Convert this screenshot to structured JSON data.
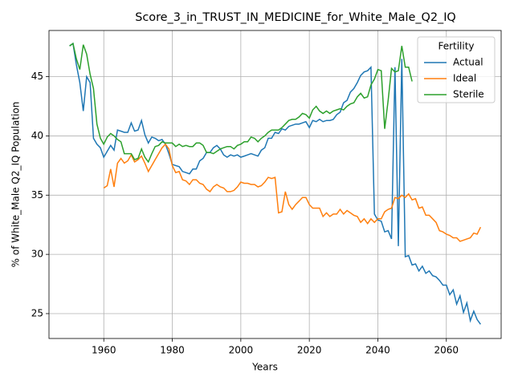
{
  "chart_data": {
    "type": "line",
    "title": "Score_3_in_TRUST_IN_MEDICINE_for_White_Male_Q2_IQ",
    "x_label": "Years",
    "y_label": "% of White_Male Q2_IQ Population",
    "legend_title": "Fertility",
    "legend_position": "upper right",
    "grid": true,
    "xlim": [
      1944,
      2076
    ],
    "ylim": [
      22.9,
      48.9
    ],
    "xticks": [
      1960,
      1980,
      2000,
      2020,
      2040,
      2060
    ],
    "yticks": [
      25,
      30,
      35,
      40,
      45
    ],
    "x": [
      1950,
      1951,
      1952,
      1953,
      1954,
      1955,
      1956,
      1957,
      1958,
      1959,
      1960,
      1961,
      1962,
      1963,
      1964,
      1965,
      1966,
      1967,
      1968,
      1969,
      1970,
      1971,
      1972,
      1973,
      1974,
      1975,
      1976,
      1977,
      1978,
      1979,
      1980,
      1981,
      1982,
      1983,
      1984,
      1985,
      1986,
      1987,
      1988,
      1989,
      1990,
      1991,
      1992,
      1993,
      1994,
      1995,
      1996,
      1997,
      1998,
      1999,
      2000,
      2001,
      2002,
      2003,
      2004,
      2005,
      2006,
      2007,
      2008,
      2009,
      2010,
      2011,
      2012,
      2013,
      2014,
      2015,
      2016,
      2017,
      2018,
      2019,
      2020,
      2021,
      2022,
      2023,
      2024,
      2025,
      2026,
      2027,
      2028,
      2029,
      2030,
      2031,
      2032,
      2033,
      2034,
      2035,
      2036,
      2037,
      2038,
      2039,
      2040,
      2041,
      2042,
      2043,
      2044,
      2045,
      2046,
      2047,
      2048,
      2049,
      2050,
      2051,
      2052,
      2053,
      2054,
      2055,
      2056,
      2057,
      2058,
      2059,
      2060,
      2061,
      2062,
      2063,
      2064,
      2065,
      2066,
      2067,
      2068,
      2069,
      2070
    ],
    "series": [
      {
        "name": "Actual",
        "color": "#1f77b4",
        "values": [
          47.6,
          47.8,
          46.0,
          44.5,
          42.1,
          45.0,
          44.5,
          39.8,
          39.3,
          39.0,
          38.2,
          38.7,
          39.2,
          38.8,
          40.5,
          40.4,
          40.3,
          40.3,
          41.1,
          40.4,
          40.5,
          41.3,
          40.1,
          39.4,
          39.9,
          39.8,
          39.6,
          39.7,
          39.3,
          38.5,
          37.6,
          37.5,
          37.4,
          37.0,
          36.9,
          36.8,
          37.2,
          37.2,
          37.9,
          38.1,
          38.6,
          38.6,
          39.0,
          39.2,
          38.9,
          38.4,
          38.2,
          38.4,
          38.3,
          38.4,
          38.2,
          38.3,
          38.4,
          38.5,
          38.4,
          38.3,
          38.8,
          39.0,
          39.8,
          39.8,
          40.3,
          40.2,
          40.6,
          40.5,
          40.8,
          40.9,
          41.0,
          41.0,
          41.1,
          41.2,
          40.7,
          41.3,
          41.2,
          41.4,
          41.2,
          41.3,
          41.3,
          41.4,
          41.8,
          42.0,
          42.8,
          43.0,
          43.7,
          44.0,
          44.5,
          45.1,
          45.4,
          45.5,
          45.8,
          33.4,
          32.9,
          32.8,
          31.9,
          32.0,
          31.3,
          45.8,
          30.7,
          46.5,
          29.8,
          29.9,
          29.1,
          29.2,
          28.6,
          29.0,
          28.4,
          28.6,
          28.2,
          28.1,
          27.8,
          27.4,
          27.4,
          26.6,
          27.0,
          25.8,
          26.5,
          25.1,
          25.9,
          24.4,
          25.2,
          24.5,
          24.1
        ]
      },
      {
        "name": "Ideal",
        "color": "#ff7f0e",
        "values": [
          null,
          null,
          null,
          null,
          null,
          null,
          null,
          null,
          null,
          null,
          35.6,
          35.8,
          37.2,
          35.7,
          37.7,
          38.1,
          37.7,
          37.9,
          38.4,
          37.8,
          38.0,
          38.3,
          37.7,
          37.0,
          37.5,
          38.0,
          38.5,
          39.0,
          39.3,
          38.9,
          37.5,
          36.9,
          37.0,
          36.3,
          36.2,
          35.9,
          36.3,
          36.3,
          36.0,
          35.9,
          35.5,
          35.3,
          35.7,
          35.9,
          35.7,
          35.6,
          35.3,
          35.3,
          35.4,
          35.7,
          36.1,
          36.0,
          36.0,
          35.9,
          35.9,
          35.7,
          35.8,
          36.1,
          36.5,
          36.4,
          36.5,
          33.5,
          33.6,
          35.3,
          34.2,
          33.8,
          34.2,
          34.5,
          34.8,
          34.8,
          34.2,
          33.9,
          33.9,
          33.9,
          33.2,
          33.5,
          33.2,
          33.4,
          33.4,
          33.8,
          33.4,
          33.7,
          33.5,
          33.3,
          33.2,
          32.7,
          33.0,
          32.6,
          33.0,
          32.7,
          33.0,
          33.0,
          33.6,
          33.8,
          33.9,
          34.8,
          34.7,
          35.0,
          34.8,
          35.1,
          34.6,
          34.7,
          33.9,
          34.0,
          33.3,
          33.3,
          33.0,
          32.7,
          32.0,
          31.9,
          31.7,
          31.6,
          31.4,
          31.4,
          31.1,
          31.2,
          31.3,
          31.4,
          31.8,
          31.7,
          32.3
        ]
      },
      {
        "name": "Sterile",
        "color": "#2ca02c",
        "values": [
          47.6,
          47.8,
          46.5,
          45.6,
          47.7,
          46.9,
          45.2,
          44.0,
          41.0,
          39.8,
          39.3,
          39.9,
          40.2,
          40.0,
          39.7,
          39.5,
          38.5,
          38.5,
          38.5,
          38.0,
          38.1,
          38.9,
          38.2,
          37.8,
          38.5,
          39.1,
          39.2,
          39.5,
          39.4,
          39.4,
          39.4,
          39.1,
          39.3,
          39.1,
          39.2,
          39.1,
          39.1,
          39.4,
          39.4,
          39.2,
          38.6,
          38.6,
          38.5,
          38.7,
          38.9,
          39.0,
          39.1,
          39.1,
          38.9,
          39.2,
          39.3,
          39.5,
          39.5,
          39.9,
          39.8,
          39.5,
          39.8,
          40.0,
          40.3,
          40.5,
          40.5,
          40.5,
          40.7,
          41.0,
          41.3,
          41.4,
          41.4,
          41.6,
          41.9,
          41.8,
          41.5,
          42.2,
          42.5,
          42.1,
          41.9,
          42.1,
          41.9,
          42.1,
          42.2,
          42.3,
          42.2,
          42.5,
          42.7,
          42.8,
          43.3,
          43.6,
          43.2,
          43.3,
          44.3,
          44.8,
          45.6,
          45.5,
          40.6,
          43.0,
          45.7,
          45.4,
          45.5,
          47.6,
          45.8,
          45.8,
          44.6,
          null,
          null,
          null,
          null,
          null,
          null,
          null,
          null,
          null,
          null,
          null,
          null,
          null,
          null,
          null,
          null,
          null,
          null,
          null,
          null
        ]
      }
    ]
  }
}
